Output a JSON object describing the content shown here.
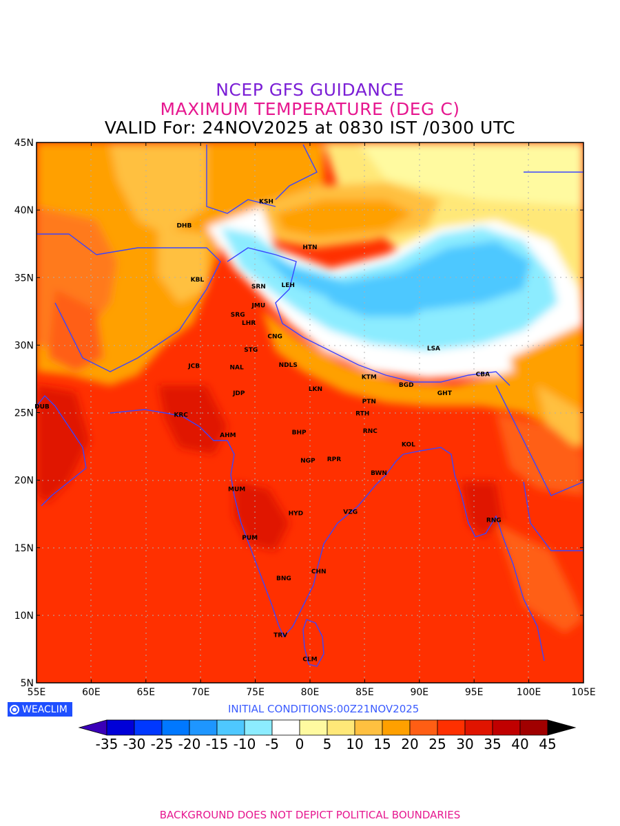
{
  "titles": {
    "line1": "NCEP GFS GUIDANCE",
    "line2": "MAXIMUM TEMPERATURE (DEG C)",
    "line3": "VALID For: 24NOV2025 at 0830 IST /0300 UTC"
  },
  "axes": {
    "lon_labels": [
      "55E",
      "60E",
      "65E",
      "70E",
      "75E",
      "80E",
      "85E",
      "90E",
      "95E",
      "100E",
      "105E"
    ],
    "lat_labels": [
      "45N",
      "40N",
      "35N",
      "30N",
      "25N",
      "20N",
      "15N",
      "10N",
      "5N"
    ],
    "lon_range": [
      55,
      105
    ],
    "lat_range": [
      5,
      45
    ],
    "grid": true
  },
  "stations": [
    {
      "code": "KSH",
      "lon": 76.0,
      "lat": 40.5
    },
    {
      "code": "DHB",
      "lon": 68.5,
      "lat": 38.7
    },
    {
      "code": "HTN",
      "lon": 80.0,
      "lat": 37.1
    },
    {
      "code": "KBL",
      "lon": 69.7,
      "lat": 34.7
    },
    {
      "code": "SRN",
      "lon": 75.3,
      "lat": 34.2
    },
    {
      "code": "LEH",
      "lon": 78.0,
      "lat": 34.3
    },
    {
      "code": "JMU",
      "lon": 75.3,
      "lat": 32.8
    },
    {
      "code": "SRG",
      "lon": 73.4,
      "lat": 32.1
    },
    {
      "code": "LHR",
      "lon": 74.4,
      "lat": 31.5
    },
    {
      "code": "CNG",
      "lon": 76.8,
      "lat": 30.5
    },
    {
      "code": "LSA",
      "lon": 91.3,
      "lat": 29.6
    },
    {
      "code": "STG",
      "lon": 74.6,
      "lat": 29.5
    },
    {
      "code": "JCB",
      "lon": 69.4,
      "lat": 28.3
    },
    {
      "code": "NAL",
      "lon": 73.3,
      "lat": 28.2
    },
    {
      "code": "NDLS",
      "lon": 78.0,
      "lat": 28.4
    },
    {
      "code": "KTM",
      "lon": 85.4,
      "lat": 27.5
    },
    {
      "code": "CBA",
      "lon": 95.8,
      "lat": 27.7
    },
    {
      "code": "BGD",
      "lon": 88.8,
      "lat": 26.9
    },
    {
      "code": "JDP",
      "lon": 73.5,
      "lat": 26.3
    },
    {
      "code": "LKN",
      "lon": 80.5,
      "lat": 26.6
    },
    {
      "code": "GHT",
      "lon": 92.3,
      "lat": 26.3
    },
    {
      "code": "PTN",
      "lon": 85.4,
      "lat": 25.7
    },
    {
      "code": "DUB",
      "lon": 55.5,
      "lat": 25.3
    },
    {
      "code": "KRC",
      "lon": 68.2,
      "lat": 24.7
    },
    {
      "code": "RTH",
      "lon": 84.8,
      "lat": 24.8
    },
    {
      "code": "AHM",
      "lon": 72.5,
      "lat": 23.2
    },
    {
      "code": "BHP",
      "lon": 79.0,
      "lat": 23.4
    },
    {
      "code": "RNC",
      "lon": 85.5,
      "lat": 23.5
    },
    {
      "code": "KOL",
      "lon": 89.0,
      "lat": 22.5
    },
    {
      "code": "NGP",
      "lon": 79.8,
      "lat": 21.3
    },
    {
      "code": "RPR",
      "lon": 82.2,
      "lat": 21.4
    },
    {
      "code": "BWN",
      "lon": 86.3,
      "lat": 20.4
    },
    {
      "code": "MUM",
      "lon": 73.3,
      "lat": 19.2
    },
    {
      "code": "HYD",
      "lon": 78.7,
      "lat": 17.4
    },
    {
      "code": "VZG",
      "lon": 83.7,
      "lat": 17.5
    },
    {
      "code": "RNG",
      "lon": 96.8,
      "lat": 16.9
    },
    {
      "code": "PUM",
      "lon": 74.5,
      "lat": 15.6
    },
    {
      "code": "CHN",
      "lon": 80.8,
      "lat": 13.1
    },
    {
      "code": "BNG",
      "lon": 77.6,
      "lat": 12.6
    },
    {
      "code": "TRV",
      "lon": 77.3,
      "lat": 8.4
    },
    {
      "code": "CLM",
      "lon": 80.0,
      "lat": 6.6
    }
  ],
  "colorbar": {
    "levels": [
      "-35",
      "-30",
      "-25",
      "-20",
      "-15",
      "-10",
      "-5",
      "0",
      "5",
      "10",
      "15",
      "20",
      "25",
      "30",
      "35",
      "40",
      "45"
    ],
    "colors": [
      "#3a00b8",
      "#0000d8",
      "#0038ff",
      "#0078ff",
      "#1e96ff",
      "#4ec8ff",
      "#8cecff",
      "#ffffff",
      "#fffaa0",
      "#ffe878",
      "#ffc040",
      "#ffa000",
      "#ff5e14",
      "#ff3000",
      "#e01400",
      "#c00000",
      "#a00000",
      "#000000"
    ]
  },
  "branding": {
    "logo": "WEACLIM",
    "initial_conditions": "INITIAL  CONDITIONS:00Z21NOV2025",
    "footer": "BACKGROUND DOES NOT DEPICT POLITICAL BOUNDARIES"
  }
}
